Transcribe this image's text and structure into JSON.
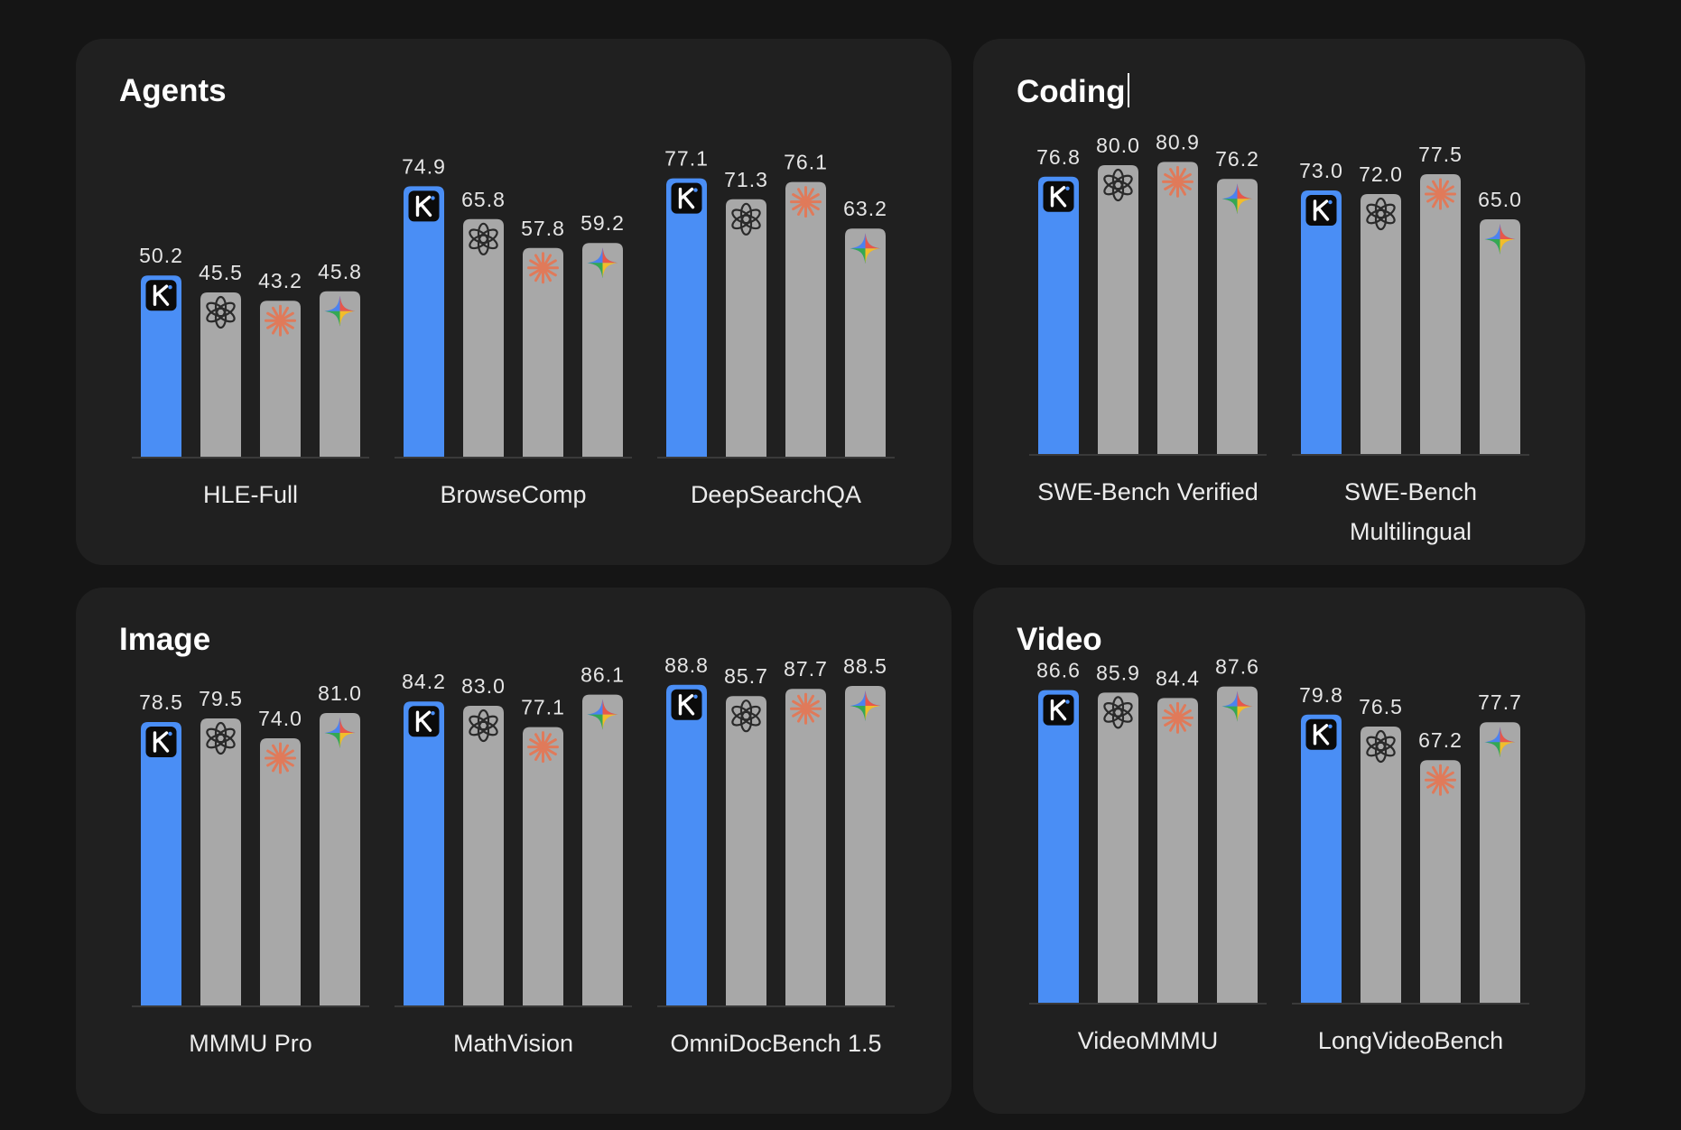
{
  "colors": {
    "background": "#151515",
    "panel": "#202020",
    "kimi_bar": "#4a8ef5",
    "other_bar": "#a8a8a8",
    "baseline": "#3a3a3a",
    "claude_icon": "#e07a5a"
  },
  "icons": [
    "kimi-k-icon",
    "openai-icon",
    "claude-icon",
    "gemini-icon"
  ],
  "panels": [
    {
      "title": "Agents"
    },
    {
      "title": "Coding"
    },
    {
      "title": "Image"
    },
    {
      "title": "Video"
    }
  ],
  "chart_data": [
    {
      "type": "bar",
      "title": "Agents",
      "categories": [
        "HLE-Full",
        "BrowseComp",
        "DeepSearchQA"
      ],
      "series": [
        {
          "icon": "kimi-k-icon",
          "color": "#4a8ef5",
          "values": [
            50.2,
            74.9,
            77.1
          ]
        },
        {
          "icon": "openai-icon",
          "color": "#a8a8a8",
          "values": [
            45.5,
            65.8,
            71.3
          ]
        },
        {
          "icon": "claude-icon",
          "color": "#a8a8a8",
          "values": [
            43.2,
            57.8,
            76.1
          ]
        },
        {
          "icon": "gemini-icon",
          "color": "#a8a8a8",
          "values": [
            45.8,
            59.2,
            63.2
          ]
        }
      ],
      "value_labels": [
        [
          "50.2",
          "45.5",
          "43.2",
          "45.8"
        ],
        [
          "74.9",
          "65.8",
          "57.8",
          "59.2"
        ],
        [
          "77.1",
          "71.3",
          "76.1",
          "63.2"
        ]
      ],
      "ylim": [
        0,
        100
      ]
    },
    {
      "type": "bar",
      "title": "Coding",
      "categories": [
        "SWE-Bench Verified",
        "SWE-Bench Multilingual"
      ],
      "series": [
        {
          "icon": "kimi-k-icon",
          "color": "#4a8ef5",
          "values": [
            76.8,
            73.0
          ]
        },
        {
          "icon": "openai-icon",
          "color": "#a8a8a8",
          "values": [
            80.0,
            72.0
          ]
        },
        {
          "icon": "claude-icon",
          "color": "#a8a8a8",
          "values": [
            80.9,
            77.5
          ]
        },
        {
          "icon": "gemini-icon",
          "color": "#a8a8a8",
          "values": [
            76.2,
            65.0
          ]
        }
      ],
      "value_labels": [
        [
          "76.8",
          "80.0",
          "80.9",
          "76.2"
        ],
        [
          "73.0",
          "72.0",
          "77.5",
          "65.0"
        ]
      ],
      "ylim": [
        0,
        100
      ]
    },
    {
      "type": "bar",
      "title": "Image",
      "categories": [
        "MMMU Pro",
        "MathVision",
        "OmniDocBench 1.5"
      ],
      "series": [
        {
          "icon": "kimi-k-icon",
          "color": "#4a8ef5",
          "values": [
            78.5,
            84.2,
            88.8
          ]
        },
        {
          "icon": "openai-icon",
          "color": "#a8a8a8",
          "values": [
            79.5,
            83.0,
            85.7
          ]
        },
        {
          "icon": "claude-icon",
          "color": "#a8a8a8",
          "values": [
            74.0,
            77.1,
            87.7
          ]
        },
        {
          "icon": "gemini-icon",
          "color": "#a8a8a8",
          "values": [
            81.0,
            86.1,
            88.5
          ]
        }
      ],
      "value_labels": [
        [
          "78.5",
          "79.5",
          "74.0",
          "81.0"
        ],
        [
          "84.2",
          "83.0",
          "77.1",
          "86.1"
        ],
        [
          "88.8",
          "85.7",
          "87.7",
          "88.5"
        ]
      ],
      "ylim": [
        0,
        100
      ]
    },
    {
      "type": "bar",
      "title": "Video",
      "categories": [
        "VideoMMMU",
        "LongVideoBench"
      ],
      "series": [
        {
          "icon": "kimi-k-icon",
          "color": "#4a8ef5",
          "values": [
            86.6,
            79.8
          ]
        },
        {
          "icon": "openai-icon",
          "color": "#a8a8a8",
          "values": [
            85.9,
            76.5
          ]
        },
        {
          "icon": "claude-icon",
          "color": "#a8a8a8",
          "values": [
            84.4,
            67.2
          ]
        },
        {
          "icon": "gemini-icon",
          "color": "#a8a8a8",
          "values": [
            87.6,
            77.7
          ]
        }
      ],
      "value_labels": [
        [
          "86.6",
          "85.9",
          "84.4",
          "87.6"
        ],
        [
          "79.8",
          "76.5",
          "67.2",
          "77.7"
        ]
      ],
      "ylim": [
        0,
        100
      ]
    }
  ]
}
